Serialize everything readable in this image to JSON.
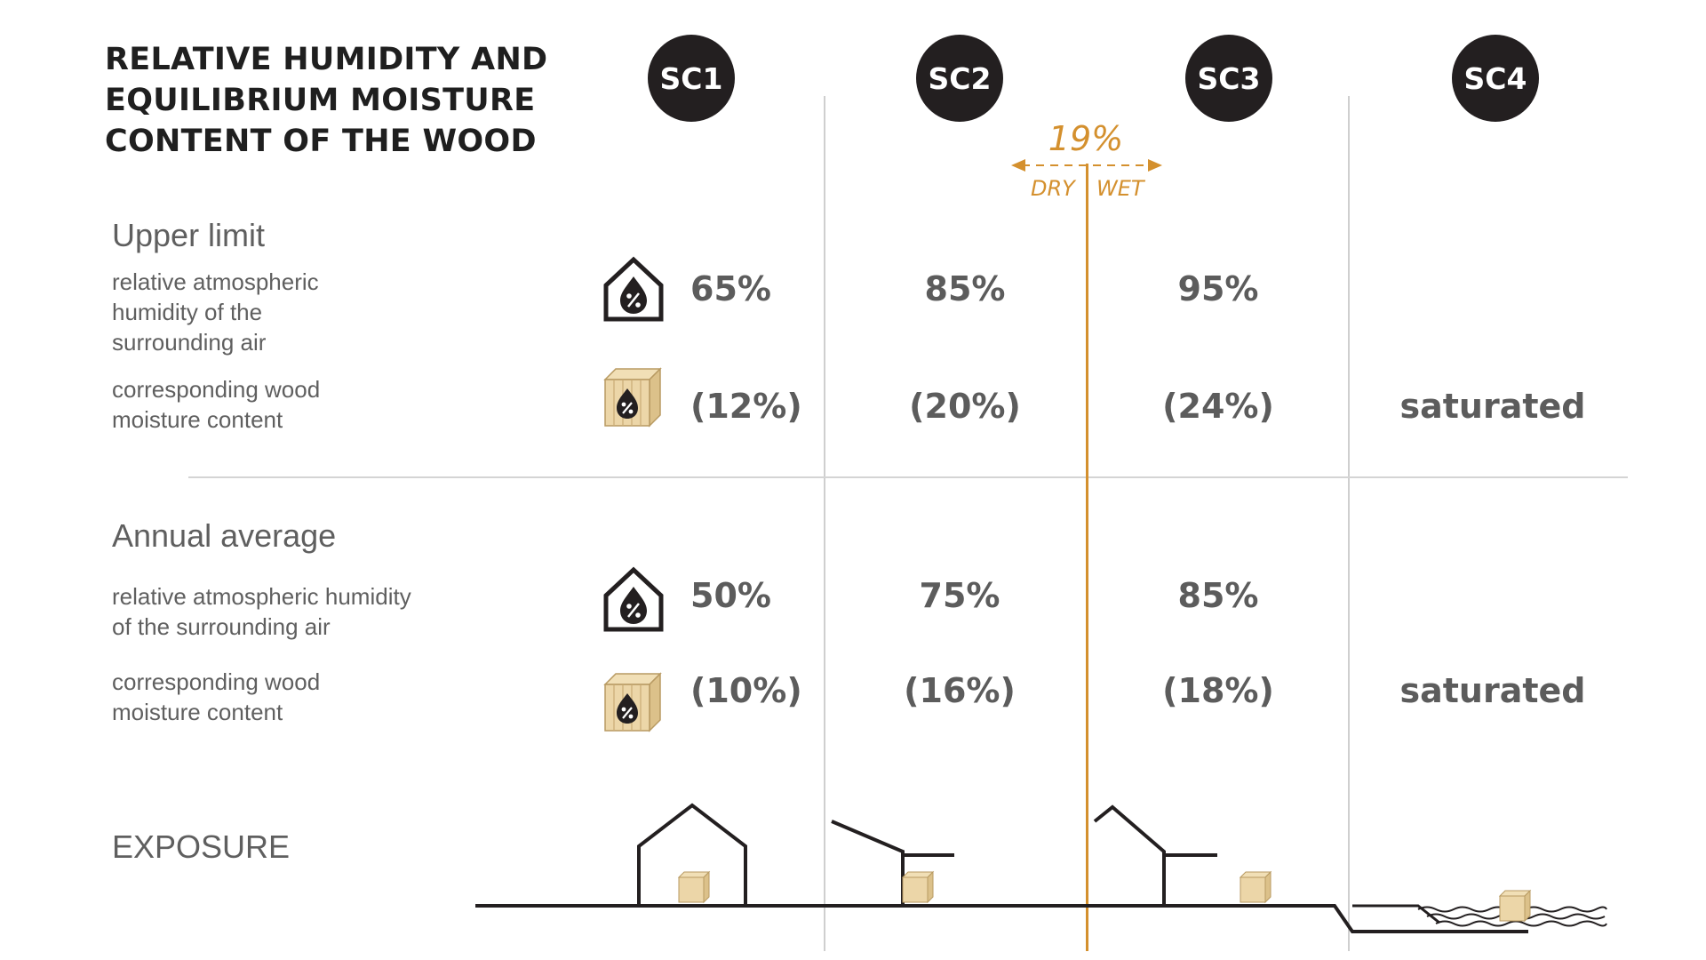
{
  "title": {
    "lines": [
      "RELATIVE HUMIDITY AND",
      "EQUILIBRIUM MOISTURE",
      "CONTENT OF THE WOOD"
    ]
  },
  "service_classes": [
    "SC1",
    "SC2",
    "SC3",
    "SC4"
  ],
  "threshold": {
    "value": "19%",
    "left_label": "DRY",
    "right_label": "WET"
  },
  "upper_limit": {
    "heading": "Upper limit",
    "humidity_label": [
      "relative atmospheric",
      "humidity of the",
      "surrounding air"
    ],
    "wood_label": [
      "corresponding wood",
      "moisture content"
    ],
    "humidity_values": [
      "65%",
      "85%",
      "95%"
    ],
    "wood_values": [
      "(12%)",
      "(20%)",
      "(24%)",
      "saturated"
    ]
  },
  "annual_average": {
    "heading": "Annual average",
    "humidity_label": [
      "relative atmospheric humidity",
      "of the surrounding air"
    ],
    "wood_label": [
      "corresponding wood",
      "moisture content"
    ],
    "humidity_values": [
      "50%",
      "75%",
      "85%"
    ],
    "wood_values": [
      "(10%)",
      "(16%)",
      "(18%)",
      "saturated"
    ]
  },
  "exposure": {
    "heading": "EXPOSURE"
  },
  "icons": {
    "humidity": "house-droplet-percent-icon",
    "wood": "wood-block-droplet-percent-icon"
  },
  "colors": {
    "accent": "#d4902e",
    "badge": "#231f20",
    "text": "#5c5c5c",
    "wood": "#e9d3a4"
  }
}
